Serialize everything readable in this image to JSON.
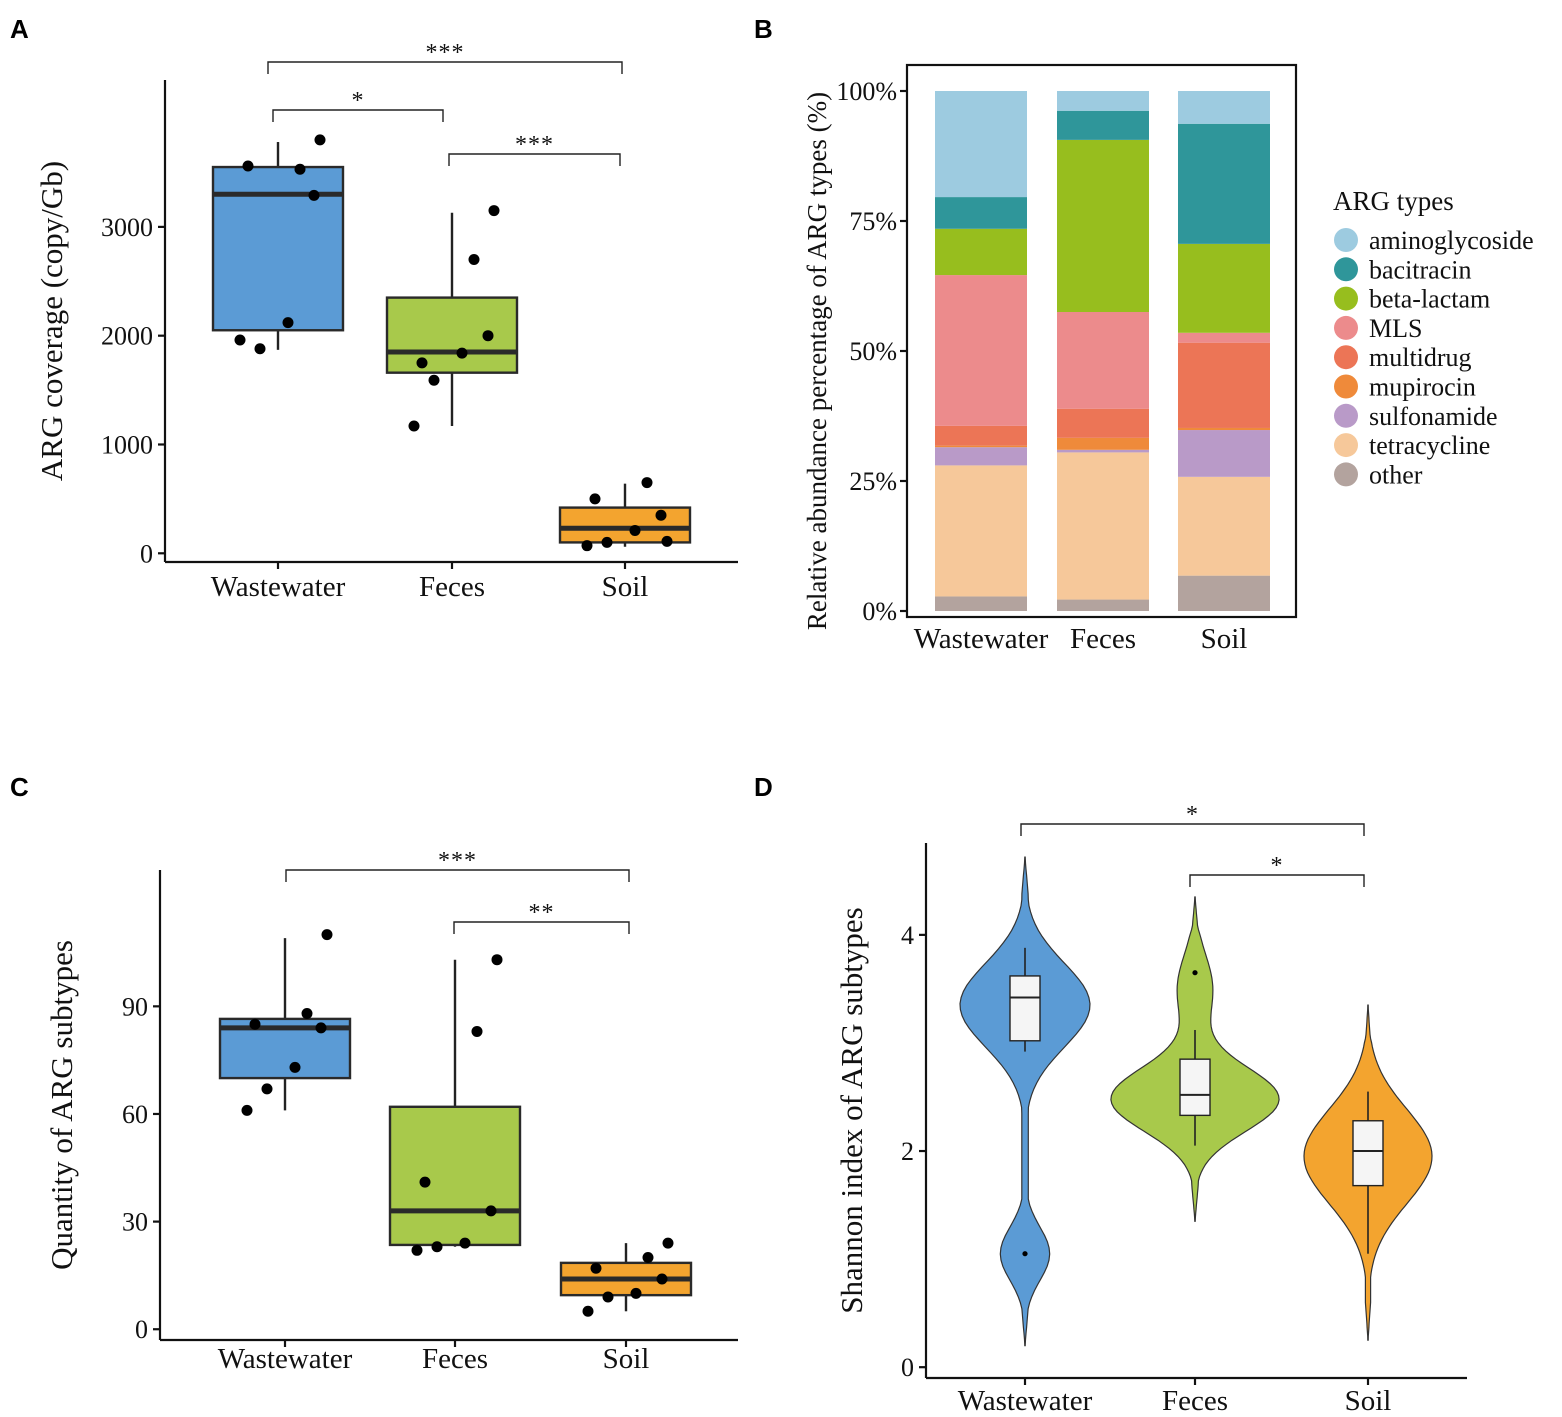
{
  "panels": {
    "A": {
      "letter": "A",
      "type": "box",
      "ylabel": "ARG coverage (copy/Gb)",
      "ylim": [
        -80,
        4350
      ],
      "yticks": [
        0,
        1000,
        2000,
        3000
      ],
      "ytick_labels": [
        "0",
        "1000",
        "2000",
        "3000"
      ],
      "categories": [
        "Wastewater",
        "Feces",
        "Soil"
      ],
      "groups": [
        {
          "name": "Wastewater",
          "color": "#5B9BD5",
          "q1": 2050,
          "median": 3300,
          "q3": 3550,
          "whisker_low": 1870,
          "whisker_high": 3780,
          "points": [
            1960,
            1880,
            2120,
            3290,
            3560,
            3530,
            3800
          ]
        },
        {
          "name": "Feces",
          "color": "#A8C94B",
          "q1": 1660,
          "median": 1850,
          "q3": 2350,
          "whisker_low": 1170,
          "whisker_high": 3130,
          "points": [
            1170,
            1590,
            1840,
            2000,
            1750,
            2700,
            3150
          ]
        },
        {
          "name": "Soil",
          "color": "#F3A42F",
          "q1": 100,
          "median": 230,
          "q3": 420,
          "whisker_low": 60,
          "whisker_high": 640,
          "points": [
            70,
            100,
            210,
            350,
            500,
            650,
            110
          ]
        }
      ],
      "comparisons": [
        {
          "from": "Wastewater",
          "to": "Soil",
          "label": "***"
        },
        {
          "from": "Wastewater",
          "to": "Feces",
          "label": "*"
        },
        {
          "from": "Feces",
          "to": "Soil",
          "label": "***"
        }
      ]
    },
    "B": {
      "letter": "B",
      "type": "stacked-bar",
      "ylabel": "Relative abundance percentage of ARG types (%)",
      "ylim": [
        0,
        100
      ],
      "yticks": [
        0,
        25,
        50,
        75,
        100
      ],
      "ytick_labels": [
        "0%",
        "25%",
        "50%",
        "75%",
        "100%"
      ],
      "categories": [
        "Wastewater",
        "Feces",
        "Soil"
      ],
      "legend_title": "ARG types",
      "series": [
        {
          "name": "other",
          "color": "#B3A39E",
          "values": [
            2.8,
            2.2,
            6.8
          ]
        },
        {
          "name": "tetracycline",
          "color": "#F6C89A",
          "values": [
            25.2,
            28.3,
            19.0
          ]
        },
        {
          "name": "sulfonamide",
          "color": "#B99AC8",
          "values": [
            3.5,
            0.5,
            9.0
          ]
        },
        {
          "name": "mupirocin",
          "color": "#EF8A3A",
          "values": [
            0.3,
            2.3,
            0.4
          ]
        },
        {
          "name": "multidrug",
          "color": "#EC7556",
          "values": [
            3.8,
            5.6,
            16.4
          ]
        },
        {
          "name": "MLS",
          "color": "#EC8B8C",
          "values": [
            29.0,
            18.6,
            1.9
          ]
        },
        {
          "name": "beta-lactam",
          "color": "#97BE1E",
          "values": [
            8.9,
            33.1,
            17.1
          ]
        },
        {
          "name": "bacitracin",
          "color": "#2F969A",
          "values": [
            6.1,
            5.6,
            23.1
          ]
        },
        {
          "name": "aminoglycoside",
          "color": "#9DCBE0",
          "values": [
            20.4,
            3.8,
            6.3
          ]
        }
      ],
      "legend_order": [
        "aminoglycoside",
        "bacitracin",
        "beta-lactam",
        "MLS",
        "multidrug",
        "mupirocin",
        "sulfonamide",
        "tetracycline",
        "other"
      ]
    },
    "C": {
      "letter": "C",
      "type": "box",
      "ylabel": "Quantity of ARG subtypes",
      "ylim": [
        -3,
        128
      ],
      "yticks": [
        0,
        30,
        60,
        90
      ],
      "ytick_labels": [
        "0",
        "30",
        "60",
        "90"
      ],
      "categories": [
        "Wastewater",
        "Feces",
        "Soil"
      ],
      "groups": [
        {
          "name": "Wastewater",
          "color": "#5B9BD5",
          "q1": 70,
          "median": 84,
          "q3": 86.5,
          "whisker_low": 61,
          "whisker_high": 109,
          "points": [
            61,
            67,
            73,
            84,
            85,
            88,
            110
          ]
        },
        {
          "name": "Feces",
          "color": "#A8C94B",
          "q1": 23.5,
          "median": 33,
          "q3": 62,
          "whisker_low": 23,
          "whisker_high": 103,
          "points": [
            22,
            23,
            24,
            33,
            41,
            83,
            103
          ]
        },
        {
          "name": "Soil",
          "color": "#F3A42F",
          "q1": 9.5,
          "median": 14,
          "q3": 18.5,
          "whisker_low": 5,
          "whisker_high": 24,
          "points": [
            5,
            9,
            10,
            14,
            17,
            20,
            24
          ]
        }
      ],
      "comparisons": [
        {
          "from": "Wastewater",
          "to": "Soil",
          "label": "***"
        },
        {
          "from": "Feces",
          "to": "Soil",
          "label": "**"
        }
      ]
    },
    "D": {
      "letter": "D",
      "type": "violin",
      "ylabel": "Shannon index of ARG subtypes",
      "ylim": [
        -0.1,
        4.85
      ],
      "yticks": [
        0,
        2,
        4
      ],
      "ytick_labels": [
        "0",
        "2",
        "4"
      ],
      "categories": [
        "Wastewater",
        "Feces",
        "Soil"
      ],
      "groups": [
        {
          "name": "Wastewater",
          "color": "#5B9BD5",
          "q1": 3.02,
          "median": 3.42,
          "q3": 3.62,
          "whisker_low": 2.92,
          "whisker_high": 3.88,
          "outliers": [
            1.05
          ],
          "density_range": [
            0.2,
            4.72
          ]
        },
        {
          "name": "Feces",
          "color": "#A8C94B",
          "q1": 2.33,
          "median": 2.52,
          "q3": 2.85,
          "whisker_low": 2.05,
          "whisker_high": 3.12,
          "outliers": [
            3.65
          ],
          "density_range": [
            1.35,
            4.35
          ]
        },
        {
          "name": "Soil",
          "color": "#F3A42F",
          "q1": 1.68,
          "median": 2.0,
          "q3": 2.28,
          "whisker_low": 1.05,
          "whisker_high": 2.55,
          "outliers": [],
          "density_range": [
            0.25,
            3.35
          ]
        }
      ],
      "comparisons": [
        {
          "from": "Wastewater",
          "to": "Soil",
          "label": "*"
        },
        {
          "from": "Feces",
          "to": "Soil",
          "label": "*"
        }
      ]
    }
  }
}
